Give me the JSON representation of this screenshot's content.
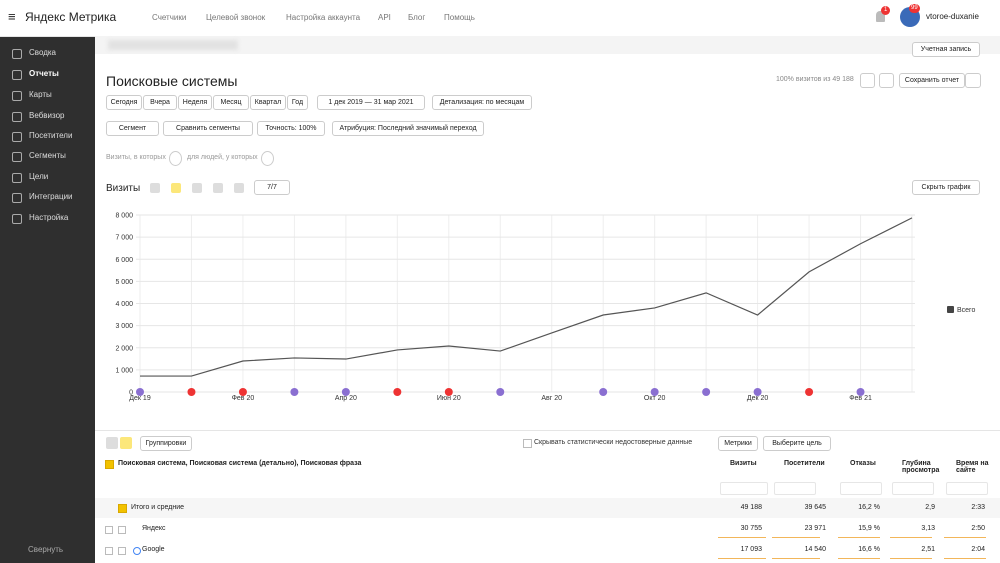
{
  "header": {
    "logo": "Яндекс Метрика",
    "nav": [
      "Счетчики",
      "Целевой звонок",
      "Настройка аккаунта",
      "API",
      "Блог",
      "Помощь"
    ],
    "notifications": "1",
    "avatar_badge": "99",
    "username": "vtoroe-duxanie"
  },
  "sidebar": {
    "items": [
      "Сводка",
      "Отчеты",
      "Карты",
      "Вебвизор",
      "Посетители",
      "Сегменты",
      "Цели",
      "Интеграции",
      "Настройка"
    ],
    "collapse": "Свернуть"
  },
  "toolbar": {
    "account": "Учетная запись"
  },
  "report": {
    "title": "Поисковые системы",
    "visits_share": "100% визитов из 49 188",
    "save": "Сохранить отчет",
    "periods": [
      "Сегодня",
      "Вчера",
      "Неделя",
      "Месяц",
      "Квартал",
      "Год"
    ],
    "date_range": "1 дек 2019 — 31 мар 2021",
    "detail": "Детализация: по месяцам",
    "filters": [
      "Сегмент",
      "Сравнить сегменты",
      "Точность: 100%",
      "Атрибуция: Последний значимый переход"
    ],
    "condition_visits": "Визиты, в которых",
    "condition_people": "для людей, у которых"
  },
  "chart_panel": {
    "metric": "Визиты",
    "series_count": "7/7",
    "hide": "Скрыть график"
  },
  "chart_data": {
    "type": "line",
    "categories": [
      "Дек 19",
      null,
      "Фев 20",
      null,
      "Апр 20",
      null,
      "Июн 20",
      null,
      "Авг 20",
      null,
      "Окт 20",
      null,
      "Дек 20",
      null,
      "Фев 21",
      null
    ],
    "series": [
      {
        "name": "Всего",
        "color": "#555555",
        "values": [
          720,
          720,
          1400,
          1540,
          1490,
          1900,
          2080,
          1850,
          2670,
          3480,
          3800,
          4480,
          3480,
          5430,
          6700,
          7870
        ]
      }
    ],
    "ylim": [
      0,
      8000
    ],
    "yticks": [
      0,
      {
        "value": 1000,
        "label": "1 000"
      },
      {
        "value": 2000,
        "label": "2 000"
      },
      {
        "value": 3000,
        "label": "3 000"
      },
      {
        "value": 4000,
        "label": "4 000"
      },
      {
        "value": 5000,
        "label": "5 000"
      },
      {
        "value": 6000,
        "label": "6 000"
      },
      {
        "value": 7000,
        "label": "7 000"
      },
      {
        "value": 8000,
        "label": "8 000"
      }
    ],
    "grid": true,
    "legend": "right"
  },
  "table": {
    "groupings": "Группировки",
    "hide_unreliable": "Скрывать статистически недостоверные данные",
    "metrics": "Метрики",
    "goal": "Выберите цель",
    "dimension": "Поисковая система, Поисковая система (детально), Поисковая фраза",
    "columns": [
      "Визиты",
      "Посетители",
      "Отказы",
      "Глубина просмотра",
      "Время на сайте"
    ],
    "rows": [
      [
        "Итого и средние",
        "49 188",
        "39 645",
        "16,2 %",
        "2,9",
        "2:33"
      ],
      [
        "Яндекс",
        "30 755",
        "23 971",
        "15,9 %",
        "3,13",
        "2:50"
      ],
      [
        "Google",
        "17 093",
        "14 540",
        "16,6 %",
        "2,51",
        "2:04"
      ]
    ]
  }
}
